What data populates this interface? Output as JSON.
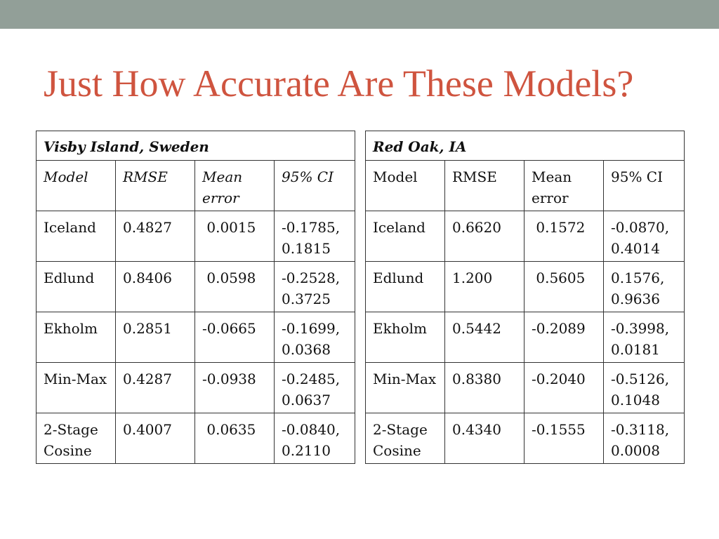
{
  "colors": {
    "top_bar": "#929f98",
    "title": "#cf543f",
    "text": "#111111",
    "border": "#333333"
  },
  "title": "Just How Accurate Are These Models?",
  "tables": [
    {
      "location": "Visby Island, Sweden",
      "header_italic": true,
      "columns": [
        "Model",
        "RMSE",
        "Mean error",
        "95% CI"
      ],
      "rows": [
        {
          "model": "Iceland",
          "rmse": "0.4827",
          "mean_error": " 0.0015",
          "ci": "-0.1785, 0.1815"
        },
        {
          "model": "Edlund",
          "rmse": "0.8406",
          "mean_error": " 0.0598",
          "ci": "-0.2528, 0.3725"
        },
        {
          "model": "Ekholm",
          "rmse": "0.2851",
          "mean_error": "-0.0665",
          "ci": "-0.1699, 0.0368"
        },
        {
          "model": "Min-Max",
          "rmse": "0.4287",
          "mean_error": "-0.0938",
          "ci": "-0.2485, 0.0637"
        },
        {
          "model": "2-Stage Cosine",
          "rmse": "0.4007",
          "mean_error": " 0.0635",
          "ci": "-0.0840, 0.2110"
        }
      ]
    },
    {
      "location": "Red Oak, IA",
      "header_italic": false,
      "columns": [
        "Model",
        "RMSE",
        "Mean error",
        "95% CI"
      ],
      "rows": [
        {
          "model": "Iceland",
          "rmse": "0.6620",
          "mean_error": " 0.1572",
          "ci": "-0.0870, 0.4014"
        },
        {
          "model": "Edlund",
          "rmse": "1.200",
          "mean_error": " 0.5605",
          "ci": "0.1576, 0.9636"
        },
        {
          "model": "Ekholm",
          "rmse": "0.5442",
          "mean_error": "-0.2089",
          "ci": "-0.3998, 0.0181"
        },
        {
          "model": "Min-Max",
          "rmse": "0.8380",
          "mean_error": "-0.2040",
          "ci": "-0.5126, 0.1048"
        },
        {
          "model": "2-Stage Cosine",
          "rmse": "0.4340",
          "mean_error": "-0.1555",
          "ci": "-0.3118, 0.0008"
        }
      ]
    }
  ]
}
